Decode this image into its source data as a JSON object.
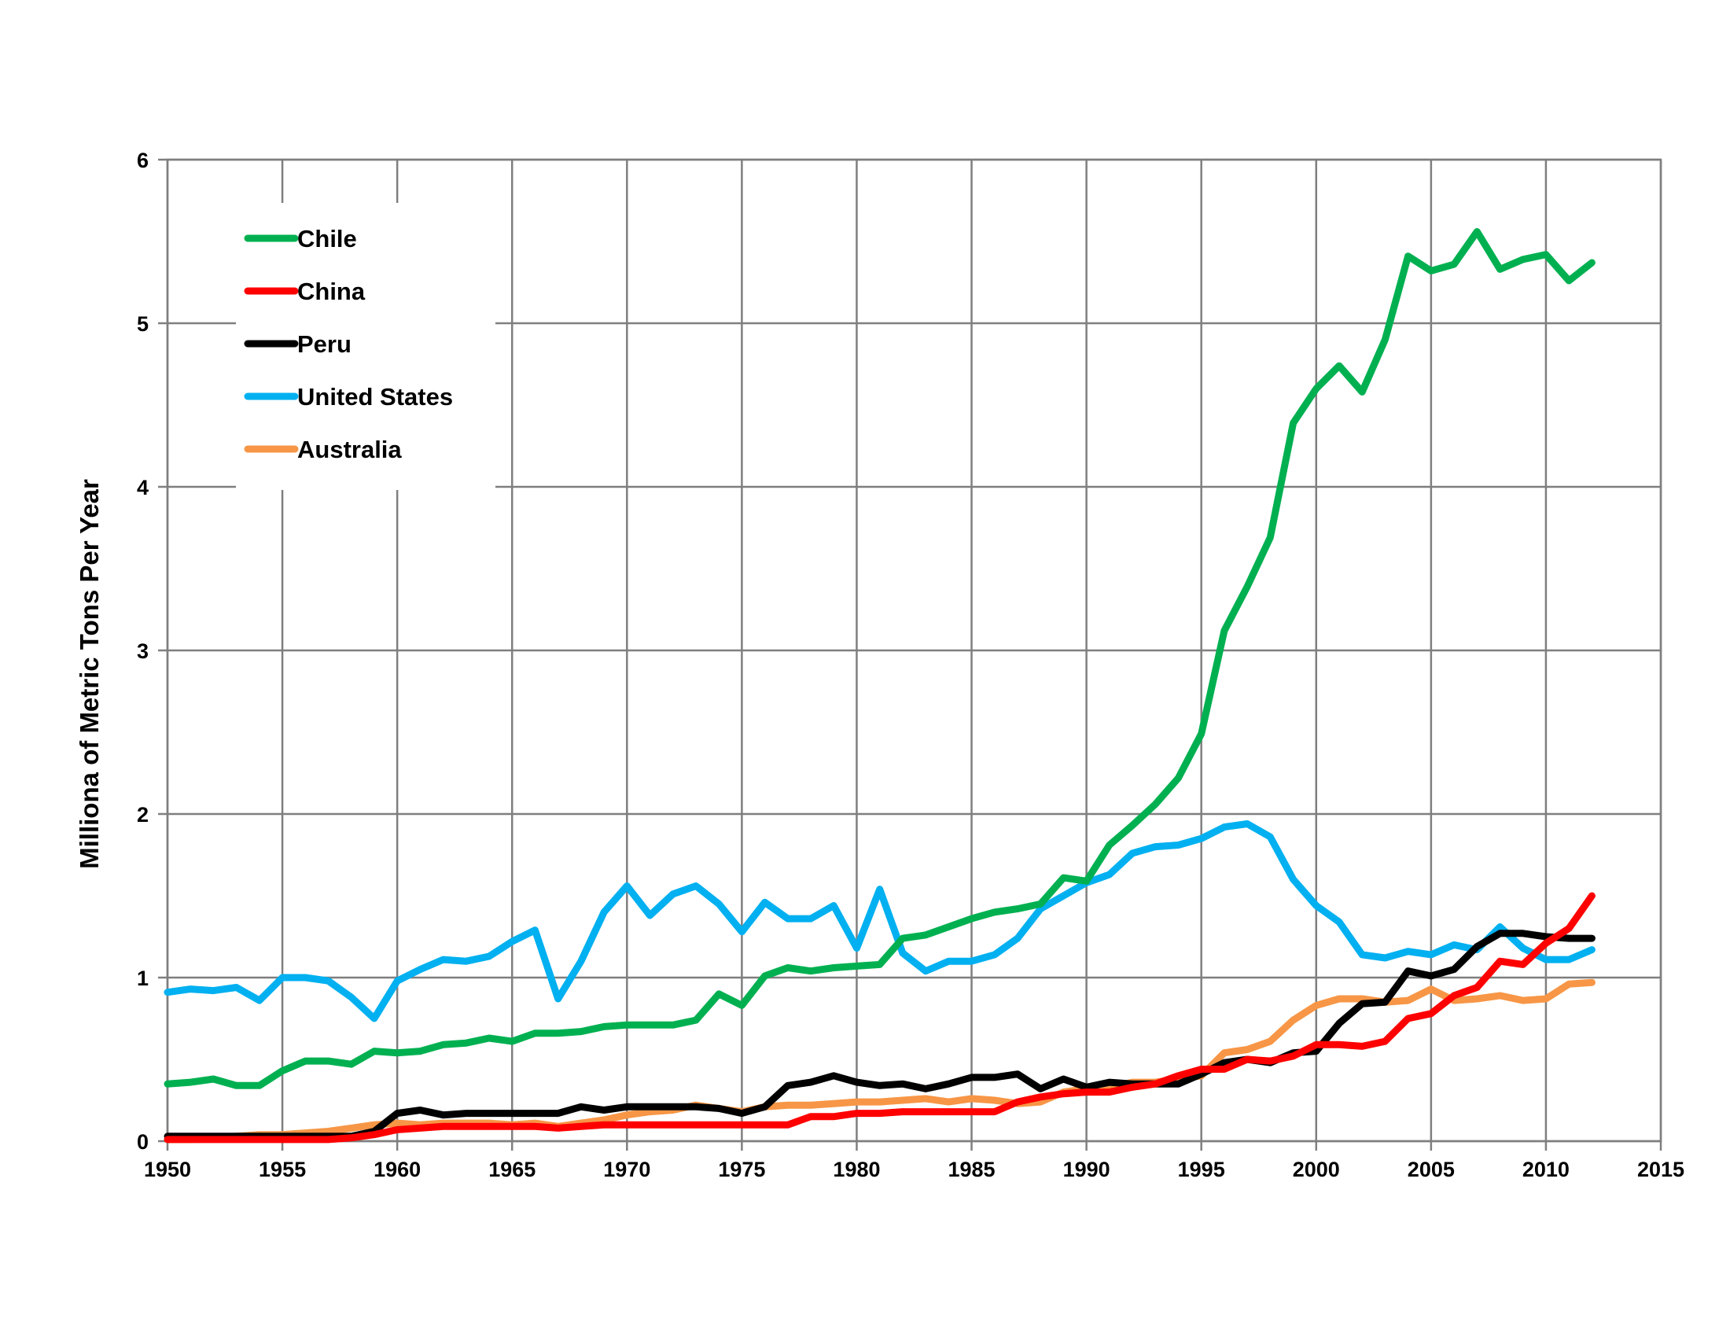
{
  "chart_data": {
    "type": "line",
    "title": "",
    "xlabel": "",
    "ylabel": "Milliona of Metric Tons Per Year",
    "xlim": [
      1950,
      2015
    ],
    "ylim": [
      0,
      6
    ],
    "xticks": [
      "1950",
      "1955",
      "1960",
      "1965",
      "1970",
      "1975",
      "1980",
      "1985",
      "1990",
      "1995",
      "2000",
      "2005",
      "2010",
      "2015"
    ],
    "yticks": [
      "0",
      "1",
      "2",
      "3",
      "4",
      "5",
      "6"
    ],
    "grid": true,
    "legend_position": "top-left",
    "x": [
      1950,
      1951,
      1952,
      1953,
      1954,
      1955,
      1956,
      1957,
      1958,
      1959,
      1960,
      1961,
      1962,
      1963,
      1964,
      1965,
      1966,
      1967,
      1968,
      1969,
      1970,
      1971,
      1972,
      1973,
      1974,
      1975,
      1976,
      1977,
      1978,
      1979,
      1980,
      1981,
      1982,
      1983,
      1984,
      1985,
      1986,
      1987,
      1988,
      1989,
      1990,
      1991,
      1992,
      1993,
      1994,
      1995,
      1996,
      1997,
      1998,
      1999,
      2000,
      2001,
      2002,
      2003,
      2004,
      2005,
      2006,
      2007,
      2008,
      2009,
      2010,
      2011,
      2012
    ],
    "series": [
      {
        "name": "Chile",
        "color": "#00B050",
        "values": [
          0.35,
          0.36,
          0.38,
          0.34,
          0.34,
          0.43,
          0.49,
          0.49,
          0.47,
          0.55,
          0.54,
          0.55,
          0.59,
          0.6,
          0.63,
          0.61,
          0.66,
          0.66,
          0.67,
          0.7,
          0.71,
          0.71,
          0.71,
          0.74,
          0.9,
          0.83,
          1.01,
          1.06,
          1.04,
          1.06,
          1.07,
          1.08,
          1.24,
          1.26,
          1.31,
          1.36,
          1.4,
          1.42,
          1.45,
          1.61,
          1.59,
          1.81,
          1.93,
          2.06,
          2.22,
          2.49,
          3.12,
          3.39,
          3.69,
          4.39,
          4.6,
          4.74,
          4.58,
          4.9,
          5.41,
          5.32,
          5.36,
          5.56,
          5.33,
          5.39,
          5.42,
          5.26,
          5.37
        ]
      },
      {
        "name": "China",
        "color": "#FF0000",
        "values": [
          0.01,
          0.01,
          0.01,
          0.01,
          0.01,
          0.01,
          0.01,
          0.01,
          0.02,
          0.04,
          0.07,
          0.08,
          0.09,
          0.09,
          0.09,
          0.09,
          0.09,
          0.08,
          0.09,
          0.1,
          0.1,
          0.1,
          0.1,
          0.1,
          0.1,
          0.1,
          0.1,
          0.1,
          0.15,
          0.15,
          0.17,
          0.17,
          0.18,
          0.18,
          0.18,
          0.18,
          0.18,
          0.24,
          0.27,
          0.29,
          0.3,
          0.3,
          0.33,
          0.35,
          0.4,
          0.44,
          0.44,
          0.5,
          0.49,
          0.52,
          0.59,
          0.59,
          0.58,
          0.61,
          0.75,
          0.78,
          0.89,
          0.94,
          1.1,
          1.08,
          1.21,
          1.3,
          1.5
        ]
      },
      {
        "name": "Peru",
        "color": "#000000",
        "values": [
          0.03,
          0.03,
          0.03,
          0.03,
          0.03,
          0.03,
          0.03,
          0.03,
          0.03,
          0.06,
          0.17,
          0.19,
          0.16,
          0.17,
          0.17,
          0.17,
          0.17,
          0.17,
          0.21,
          0.19,
          0.21,
          0.21,
          0.21,
          0.21,
          0.2,
          0.17,
          0.21,
          0.34,
          0.36,
          0.4,
          0.36,
          0.34,
          0.35,
          0.32,
          0.35,
          0.39,
          0.39,
          0.41,
          0.32,
          0.38,
          0.33,
          0.36,
          0.35,
          0.35,
          0.35,
          0.41,
          0.48,
          0.5,
          0.48,
          0.54,
          0.55,
          0.72,
          0.84,
          0.85,
          1.04,
          1.01,
          1.05,
          1.19,
          1.27,
          1.27,
          1.25,
          1.24,
          1.24
        ]
      },
      {
        "name": "United States",
        "color": "#00B0F0",
        "values": [
          0.91,
          0.93,
          0.92,
          0.94,
          0.86,
          1.0,
          1.0,
          0.98,
          0.88,
          0.75,
          0.98,
          1.05,
          1.11,
          1.1,
          1.13,
          1.22,
          1.29,
          0.87,
          1.1,
          1.4,
          1.56,
          1.38,
          1.51,
          1.56,
          1.45,
          1.28,
          1.46,
          1.36,
          1.36,
          1.44,
          1.18,
          1.54,
          1.15,
          1.04,
          1.1,
          1.1,
          1.14,
          1.24,
          1.42,
          1.5,
          1.58,
          1.63,
          1.76,
          1.8,
          1.81,
          1.85,
          1.92,
          1.94,
          1.86,
          1.6,
          1.44,
          1.34,
          1.14,
          1.12,
          1.16,
          1.14,
          1.2,
          1.17,
          1.31,
          1.18,
          1.11,
          1.11,
          1.17
        ]
      },
      {
        "name": "Australia",
        "color": "#F79646",
        "values": [
          0.01,
          0.01,
          0.02,
          0.03,
          0.04,
          0.04,
          0.05,
          0.06,
          0.08,
          0.1,
          0.11,
          0.1,
          0.11,
          0.11,
          0.11,
          0.1,
          0.11,
          0.09,
          0.11,
          0.13,
          0.16,
          0.18,
          0.19,
          0.22,
          0.2,
          0.18,
          0.21,
          0.22,
          0.22,
          0.23,
          0.24,
          0.24,
          0.25,
          0.26,
          0.24,
          0.26,
          0.25,
          0.23,
          0.24,
          0.3,
          0.32,
          0.33,
          0.36,
          0.36,
          0.38,
          0.4,
          0.54,
          0.56,
          0.61,
          0.74,
          0.83,
          0.87,
          0.87,
          0.85,
          0.86,
          0.93,
          0.86,
          0.87,
          0.89,
          0.86,
          0.87,
          0.96,
          0.97
        ]
      }
    ]
  }
}
